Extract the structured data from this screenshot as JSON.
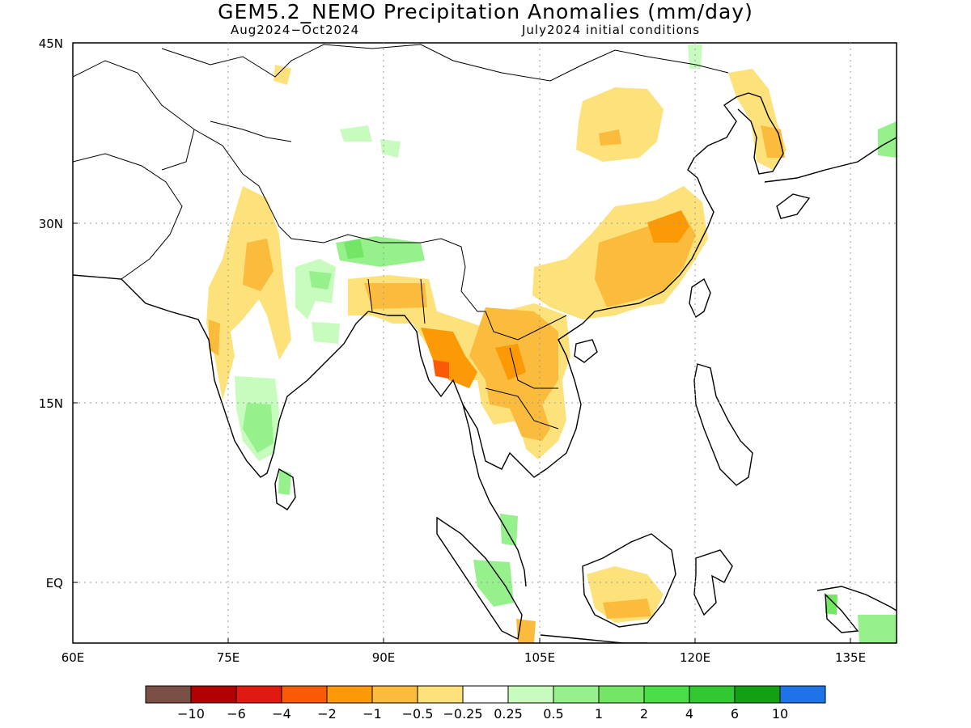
{
  "title": "GEM5.2_NEMO Precipitation Anomalies (mm/day)",
  "period": "Aug2024−Oct2024",
  "init": "July2024 initial conditions",
  "lon_labels": [
    "60E",
    "75E",
    "90E",
    "105E",
    "120E",
    "135E"
  ],
  "lat_labels": [
    "45N",
    "30N",
    "15N",
    "EQ"
  ],
  "colorbar": {
    "colors": [
      "#7a4f45",
      "#b30000",
      "#e01a10",
      "#fa5a05",
      "#fb9a06",
      "#fbbb3c",
      "#fde27c",
      "#ffffff",
      "#c8fcbe",
      "#96f08c",
      "#73e665",
      "#4cde47",
      "#32c832",
      "#13a013",
      "#1f73e8"
    ],
    "labels": [
      "−10",
      "−6",
      "−4",
      "−2",
      "−1",
      "−0.5",
      "−0.25",
      "0.25",
      "0.5",
      "1",
      "2",
      "4",
      "6",
      "10"
    ]
  }
}
